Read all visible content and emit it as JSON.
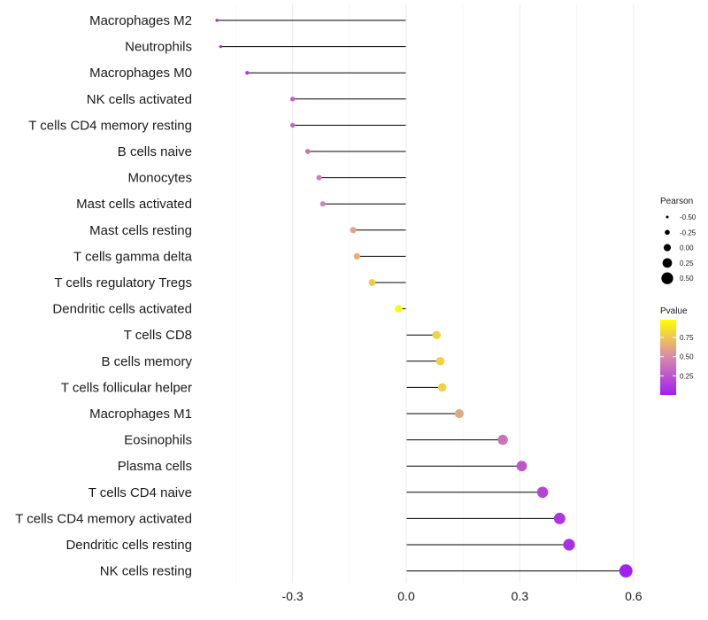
{
  "chart_data": {
    "type": "lollipop",
    "title": "",
    "xlabel": "",
    "ylabel": "",
    "xlim": [
      -0.52,
      0.62
    ],
    "xticks": [
      -0.3,
      0.0,
      0.3,
      0.6
    ],
    "xtick_labels": [
      "-0.3",
      "0.0",
      "0.3",
      "0.6"
    ],
    "grid": true,
    "categories": [
      "Macrophages M2",
      "Neutrophils",
      "Macrophages M0",
      "NK cells activated",
      "T cells CD4 memory resting",
      "B cells naive",
      "Monocytes",
      "Mast cells activated",
      "Mast cells resting",
      "T cells gamma delta",
      "T cells regulatory  Tregs ",
      "Dendritic cells activated",
      "T cells CD8",
      "B cells memory",
      "T cells follicular helper",
      "Macrophages M1",
      "Eosinophils",
      "Plasma cells",
      "T cells CD4 naive",
      "T cells CD4 memory activated",
      "Dendritic cells resting",
      "NK cells resting"
    ],
    "pearson": [
      -0.5,
      -0.49,
      -0.42,
      -0.3,
      -0.3,
      -0.26,
      -0.23,
      -0.22,
      -0.14,
      -0.13,
      -0.09,
      -0.02,
      0.08,
      0.09,
      0.095,
      0.14,
      0.255,
      0.305,
      0.36,
      0.405,
      0.43,
      0.58
    ],
    "pvalue": [
      0.02,
      0.03,
      0.12,
      0.3,
      0.32,
      0.38,
      0.44,
      0.46,
      0.6,
      0.65,
      0.76,
      0.95,
      0.8,
      0.79,
      0.79,
      0.62,
      0.38,
      0.26,
      0.17,
      0.1,
      0.08,
      0.01
    ],
    "legend_size": {
      "title": "Pearson",
      "labels": [
        "-0.50",
        "-0.25",
        "0.00",
        "0.25",
        "0.50"
      ],
      "values": [
        -0.5,
        -0.25,
        0.0,
        0.25,
        0.5
      ],
      "position": "right"
    },
    "legend_color": {
      "title": "Pvalue",
      "labels": [
        "0.75",
        "0.50",
        "0.25"
      ],
      "values": [
        0.75,
        0.5,
        0.25
      ],
      "range": [
        0.0,
        0.98
      ],
      "low_color": "#a020f0",
      "mid_color": "#d98aa9",
      "high_color": "#ffff00",
      "position": "right"
    }
  }
}
